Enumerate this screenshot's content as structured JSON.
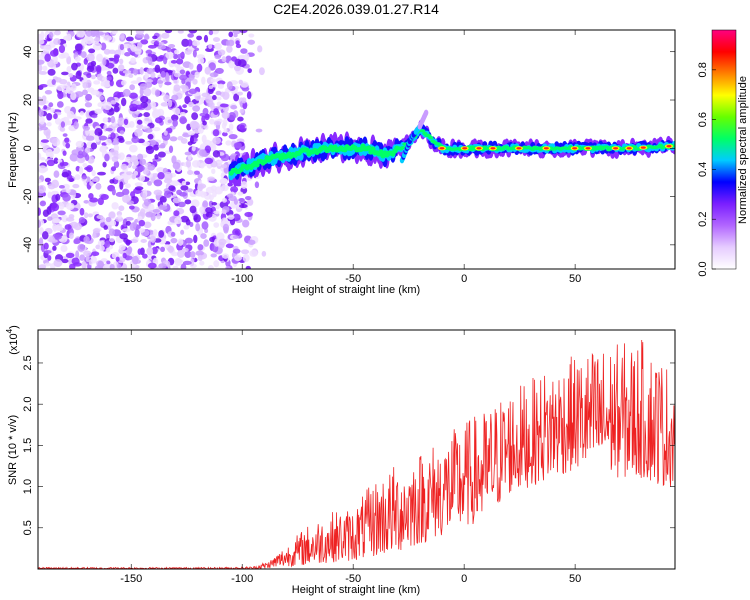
{
  "title": "C2E4.2026.039.01.27.R14",
  "chart_data": [
    {
      "type": "heatmap",
      "title": "C2E4.2026.039.01.27.R14",
      "xlabel": "Height of straight line (km)",
      "ylabel": "Frequency (Hz)",
      "xlim": [
        -192,
        95
      ],
      "ylim": [
        -50,
        49
      ],
      "xticks": [
        -150,
        -100,
        -50,
        0,
        50
      ],
      "yticks": [
        -40,
        -20,
        0,
        20,
        40
      ],
      "colorbar": {
        "label": "Normalized spectral amplitude",
        "range": [
          0,
          0.96
        ],
        "ticks": [
          "0.0",
          "0.2",
          "0.4",
          "0.6",
          "0.8"
        ],
        "colormap": [
          "#ffffff",
          "#e6ccff",
          "#b266ff",
          "#7a1fff",
          "#0000ff",
          "#00ccff",
          "#00ff66",
          "#66ff00",
          "#ffff00",
          "#ff8000",
          "#ff0000",
          "#ff0080"
        ]
      },
      "features": {
        "noise_region_x": [
          -192,
          -98
        ],
        "ridge_points": [
          [
            -105,
            -10
          ],
          [
            -90,
            -5
          ],
          [
            -75,
            -2
          ],
          [
            -60,
            0
          ],
          [
            -45,
            0
          ],
          [
            -35,
            -3
          ],
          [
            -25,
            2
          ],
          [
            -20,
            8
          ],
          [
            -10,
            0
          ],
          [
            0,
            0
          ],
          [
            25,
            0
          ],
          [
            50,
            0
          ],
          [
            75,
            0
          ],
          [
            95,
            1
          ]
        ],
        "spike_points": [
          [
            -28,
            -5
          ],
          [
            -24,
            4
          ],
          [
            -20,
            9
          ],
          [
            -17,
            15
          ]
        ]
      }
    },
    {
      "type": "line",
      "xlabel": "Height of straight line (km)",
      "ylabel": "SNR (10 * v/v)",
      "scale_label": "(x10",
      "scale_exp": "4",
      "scale_close": ")",
      "xlim": [
        -192,
        95
      ],
      "ylim": [
        0,
        2.9
      ],
      "xticks": [
        -150,
        -100,
        -50,
        0,
        50
      ],
      "yticks": [
        "0.5",
        "1.0",
        "1.5",
        "2.0",
        "2.5"
      ],
      "color": "#ee2222",
      "envelope": {
        "x": [
          -192,
          -110,
          -95,
          -88,
          -80,
          -70,
          -60,
          -50,
          -40,
          -30,
          -20,
          -10,
          0,
          10,
          20,
          30,
          40,
          50,
          60,
          70,
          80,
          90,
          95
        ],
        "low": [
          0.0,
          0.0,
          0.0,
          0.01,
          0.03,
          0.05,
          0.08,
          0.1,
          0.15,
          0.2,
          0.3,
          0.4,
          0.5,
          0.6,
          0.9,
          1.0,
          1.1,
          1.2,
          1.2,
          1.1,
          1.1,
          1.0,
          1.0
        ],
        "high": [
          0.02,
          0.02,
          0.03,
          0.1,
          0.3,
          0.55,
          0.7,
          0.75,
          1.1,
          1.3,
          1.45,
          1.6,
          1.8,
          1.95,
          2.2,
          2.3,
          2.5,
          2.6,
          2.7,
          2.75,
          2.8,
          2.55,
          2.4
        ]
      }
    }
  ]
}
